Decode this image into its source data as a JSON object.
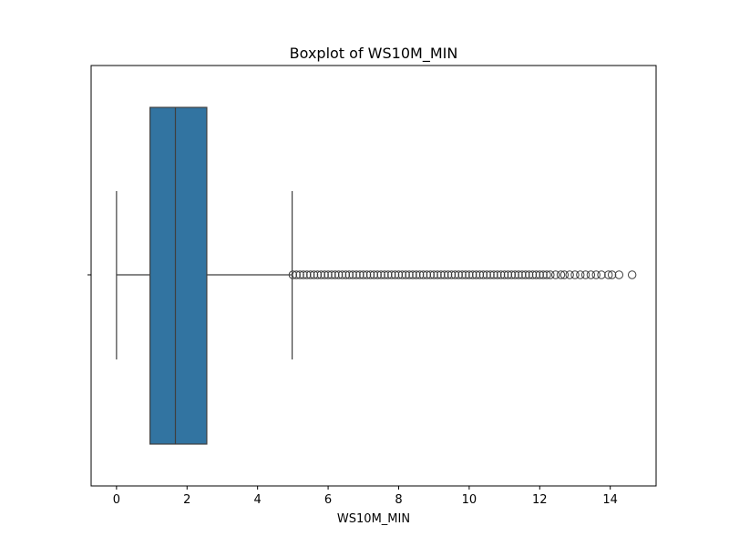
{
  "chart_data": {
    "type": "boxplot",
    "orientation": "horizontal",
    "title": "Boxplot of WS10M_MIN",
    "xlabel": "WS10M_MIN",
    "ylabel": "",
    "xlim": [
      -0.72,
      15.3
    ],
    "x_ticks": [
      0,
      2,
      4,
      6,
      8,
      10,
      12,
      14
    ],
    "x_tick_labels": [
      "0",
      "2",
      "4",
      "6",
      "8",
      "10",
      "12",
      "14"
    ],
    "grid": false,
    "legend": "none",
    "box": {
      "whisker_low": 0.0,
      "q1": 0.95,
      "median": 1.67,
      "q3": 2.56,
      "whisker_high": 4.98
    },
    "outliers": [
      5.0,
      5.1,
      5.2,
      5.3,
      5.4,
      5.5,
      5.6,
      5.7,
      5.8,
      5.9,
      6.0,
      6.1,
      6.2,
      6.3,
      6.4,
      6.5,
      6.6,
      6.7,
      6.8,
      6.9,
      7.0,
      7.1,
      7.2,
      7.3,
      7.4,
      7.5,
      7.6,
      7.7,
      7.8,
      7.9,
      8.0,
      8.1,
      8.2,
      8.3,
      8.4,
      8.5,
      8.6,
      8.7,
      8.8,
      8.9,
      9.0,
      9.1,
      9.2,
      9.3,
      9.4,
      9.5,
      9.6,
      9.7,
      9.8,
      9.9,
      10.0,
      10.1,
      10.2,
      10.3,
      10.4,
      10.5,
      10.6,
      10.7,
      10.8,
      10.9,
      11.0,
      11.1,
      11.2,
      11.3,
      11.4,
      11.5,
      11.6,
      11.7,
      11.8,
      11.9,
      12.0,
      12.1,
      12.2,
      12.3,
      12.45,
      12.6,
      12.7,
      12.85,
      13.0,
      13.15,
      13.3,
      13.45,
      13.6,
      13.75,
      13.95,
      14.05,
      14.25,
      14.62
    ],
    "colors": {
      "box_fill": "#3274a1",
      "lines": "#3f3f3f",
      "outlier_edge": "#3f3f3f"
    }
  }
}
